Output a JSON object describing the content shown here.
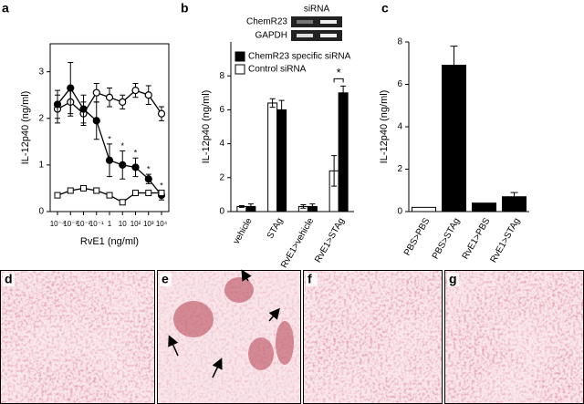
{
  "chart_data": [
    {
      "type": "line",
      "panel": "a",
      "ylabel": "IL-12p40 (ng/ml)",
      "xlabel": "RvE1 (ng/ml)",
      "categories": [
        "10⁻⁴",
        "10⁻³",
        "10⁻²",
        "10⁻¹",
        "1",
        "10",
        "10²",
        "10³",
        "10⁴"
      ],
      "ylim": [
        0,
        3.6
      ],
      "yticks": [
        0,
        1,
        2,
        3
      ],
      "series": [
        {
          "color": "#000000",
          "fill": "#ffffff",
          "marker": "circle",
          "values": [
            2.2,
            2.35,
            2.1,
            2.55,
            2.45,
            2.35,
            2.6,
            2.5,
            2.1
          ],
          "errors": [
            0.3,
            0.3,
            0.25,
            0.2,
            0.2,
            0.15,
            0.15,
            0.2,
            0.15
          ]
        },
        {
          "color": "#000000",
          "fill": "#000000",
          "marker": "circle",
          "values": [
            2.3,
            2.65,
            2.2,
            1.95,
            1.1,
            1.0,
            0.95,
            0.7,
            0.35
          ],
          "errors": [
            0.3,
            0.55,
            0.3,
            0.4,
            0.35,
            0.3,
            0.2,
            0.1,
            0.1
          ]
        },
        {
          "color": "#000000",
          "fill": "#ffffff",
          "marker": "square",
          "values": [
            0.35,
            0.45,
            0.5,
            0.45,
            0.35,
            0.2,
            0.4,
            0.4,
            0.4
          ]
        }
      ],
      "annotations": [
        {
          "category": "1",
          "text": "*"
        },
        {
          "category": "10",
          "text": "*"
        },
        {
          "category": "10²",
          "text": "*"
        },
        {
          "category": "10³",
          "text": "*"
        },
        {
          "category": "10⁴",
          "text": "*"
        }
      ]
    },
    {
      "type": "bar",
      "panel": "b",
      "ylabel": "IL-12p40 (ng/ml)",
      "categories": [
        "vehicle",
        "STAg",
        "RvE1>vehicle",
        "RvE1>STAg"
      ],
      "ylim": [
        0,
        10
      ],
      "yticks": [
        0,
        2,
        4,
        6,
        8
      ],
      "legend": "upper left",
      "series": [
        {
          "name": "ChemR23 specific siRNA",
          "color": "#000000",
          "values": [
            0.3,
            6.0,
            0.3,
            7.0
          ],
          "errors": [
            0.15,
            0.55,
            0.15,
            0.4
          ]
        },
        {
          "name": "Control siRNA",
          "color": "#ffffff",
          "values": [
            0.3,
            6.4,
            0.3,
            2.4
          ],
          "errors": [
            0.05,
            0.25,
            0.1,
            0.9
          ]
        }
      ],
      "draw_order": [
        1,
        0
      ],
      "annotations": [
        {
          "category": "RvE1>STAg",
          "text": "*"
        }
      ],
      "inset": {
        "title": "siRNA",
        "rows": [
          "ChemR23",
          "GAPDH"
        ]
      }
    },
    {
      "type": "bar",
      "panel": "c",
      "ylabel": "IL-12p40 (ng/ml)",
      "categories": [
        "PBS>PBS",
        "PBS>STAg",
        "RvE1>PBS",
        "RvE1>STAg"
      ],
      "ylim": [
        0,
        8
      ],
      "yticks": [
        0,
        2,
        4,
        6,
        8
      ],
      "values": [
        0.2,
        6.9,
        0.4,
        0.7
      ],
      "errors": [
        0,
        0.9,
        0,
        0.2
      ],
      "colors": [
        "#ffffff",
        "#000000",
        "#000000",
        "#000000"
      ]
    }
  ],
  "image_panels": [
    "d",
    "e",
    "f",
    "g"
  ]
}
